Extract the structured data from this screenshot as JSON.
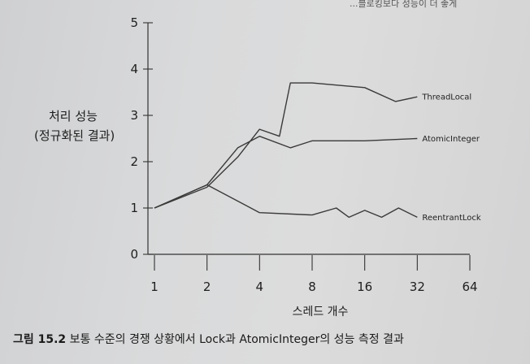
{
  "top_fragment": "...블로킹보다 성능이 더 좋게",
  "caption": {
    "number": "그림 15.2",
    "text": "보통 수준의 경쟁 상황에서 Lock과 AtomicInteger의 성능 측정 결과"
  },
  "chart_data": {
    "type": "line",
    "title": "",
    "xlabel": "스레드 개수",
    "ylabel_lines": [
      "처리 성능",
      "(정규화된 결과)"
    ],
    "x_scale": "log2",
    "x_ticks": [
      1,
      2,
      4,
      8,
      16,
      32,
      64
    ],
    "x_tick_labels": [
      "1",
      "2",
      "4",
      "8",
      "16",
      "32",
      "64"
    ],
    "y_ticks": [
      0,
      1,
      2,
      3,
      4,
      5
    ],
    "y_tick_labels": [
      "0",
      "1",
      "2",
      "3",
      "4",
      "5"
    ],
    "ylim": [
      0,
      5
    ],
    "xlim": [
      1,
      64
    ],
    "grid": false,
    "legend": "inline labels at line ends",
    "series": [
      {
        "name": "ThreadLocal",
        "color": "#3a3a3a",
        "points": [
          [
            1,
            1.0
          ],
          [
            2,
            1.45
          ],
          [
            3,
            2.1
          ],
          [
            4,
            2.7
          ],
          [
            5.2,
            2.55
          ],
          [
            6,
            3.7
          ],
          [
            8,
            3.7
          ],
          [
            16,
            3.6
          ],
          [
            24,
            3.3
          ],
          [
            32,
            3.4
          ]
        ]
      },
      {
        "name": "AtomicInteger",
        "color": "#3a3a3a",
        "points": [
          [
            1,
            1.0
          ],
          [
            2,
            1.5
          ],
          [
            3,
            2.3
          ],
          [
            4,
            2.55
          ],
          [
            6,
            2.3
          ],
          [
            8,
            2.45
          ],
          [
            16,
            2.45
          ],
          [
            32,
            2.5
          ]
        ]
      },
      {
        "name": "ReentrantLock",
        "color": "#3a3a3a",
        "points": [
          [
            1,
            1.0
          ],
          [
            2,
            1.5
          ],
          [
            4,
            0.9
          ],
          [
            8,
            0.85
          ],
          [
            11,
            1.0
          ],
          [
            13,
            0.8
          ],
          [
            16,
            0.95
          ],
          [
            20,
            0.8
          ],
          [
            25,
            1.0
          ],
          [
            32,
            0.8
          ]
        ]
      }
    ]
  }
}
